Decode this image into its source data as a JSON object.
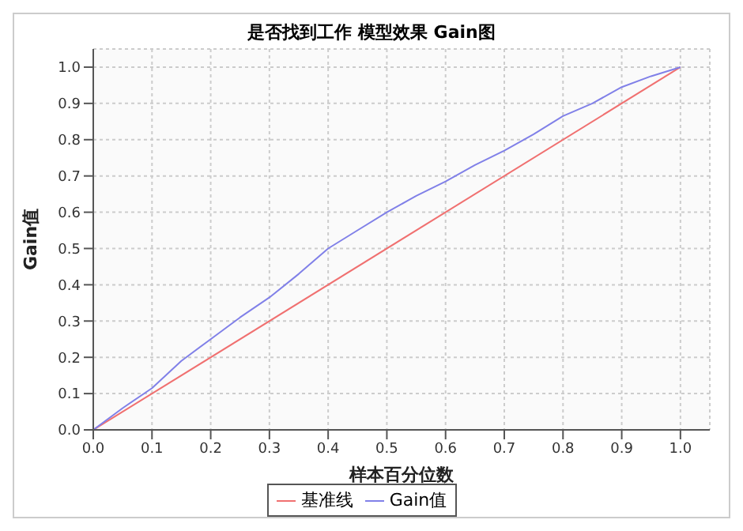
{
  "chart_data": {
    "type": "line",
    "title": "是否找到工作 模型效果 Gain图",
    "xlabel": "样本百分位数",
    "ylabel": "Gain值",
    "xlim": [
      0,
      1.05
    ],
    "ylim": [
      0,
      1.05
    ],
    "xticks": [
      {
        "value": 0,
        "label": "0.0"
      },
      {
        "value": 0.1,
        "label": "0.1"
      },
      {
        "value": 0.2,
        "label": "0.2"
      },
      {
        "value": 0.3,
        "label": "0.3"
      },
      {
        "value": 0.4,
        "label": "0.4"
      },
      {
        "value": 0.5,
        "label": "0.5"
      },
      {
        "value": 0.6,
        "label": "0.6"
      },
      {
        "value": 0.7,
        "label": "0.7"
      },
      {
        "value": 0.8,
        "label": "0.8"
      },
      {
        "value": 0.9,
        "label": "0.9"
      },
      {
        "value": 1,
        "label": "1.0"
      }
    ],
    "yticks": [
      {
        "value": 0,
        "label": "0.0"
      },
      {
        "value": 0.1,
        "label": "0.1"
      },
      {
        "value": 0.2,
        "label": "0.2"
      },
      {
        "value": 0.3,
        "label": "0.3"
      },
      {
        "value": 0.4,
        "label": "0.4"
      },
      {
        "value": 0.5,
        "label": "0.5"
      },
      {
        "value": 0.6,
        "label": "0.6"
      },
      {
        "value": 0.7,
        "label": "0.7"
      },
      {
        "value": 0.8,
        "label": "0.8"
      },
      {
        "value": 0.9,
        "label": "0.9"
      },
      {
        "value": 1,
        "label": "1.0"
      }
    ],
    "grid": true,
    "legend": "bottom",
    "marker": "none",
    "series": [
      {
        "name": "基准线",
        "color": "#f07070",
        "x": [
          0,
          1
        ],
        "values": [
          0,
          1
        ]
      },
      {
        "name": "Gain值",
        "color": "#8080e8",
        "x": [
          0,
          0.05,
          0.1,
          0.15,
          0.2,
          0.25,
          0.3,
          0.35,
          0.4,
          0.45,
          0.5,
          0.55,
          0.6,
          0.65,
          0.7,
          0.75,
          0.8,
          0.85,
          0.9,
          0.95,
          1
        ],
        "values": [
          0,
          0.06,
          0.115,
          0.19,
          0.25,
          0.31,
          0.365,
          0.43,
          0.5,
          0.55,
          0.6,
          0.645,
          0.685,
          0.73,
          0.77,
          0.815,
          0.865,
          0.9,
          0.945,
          0.975,
          1
        ]
      }
    ]
  }
}
